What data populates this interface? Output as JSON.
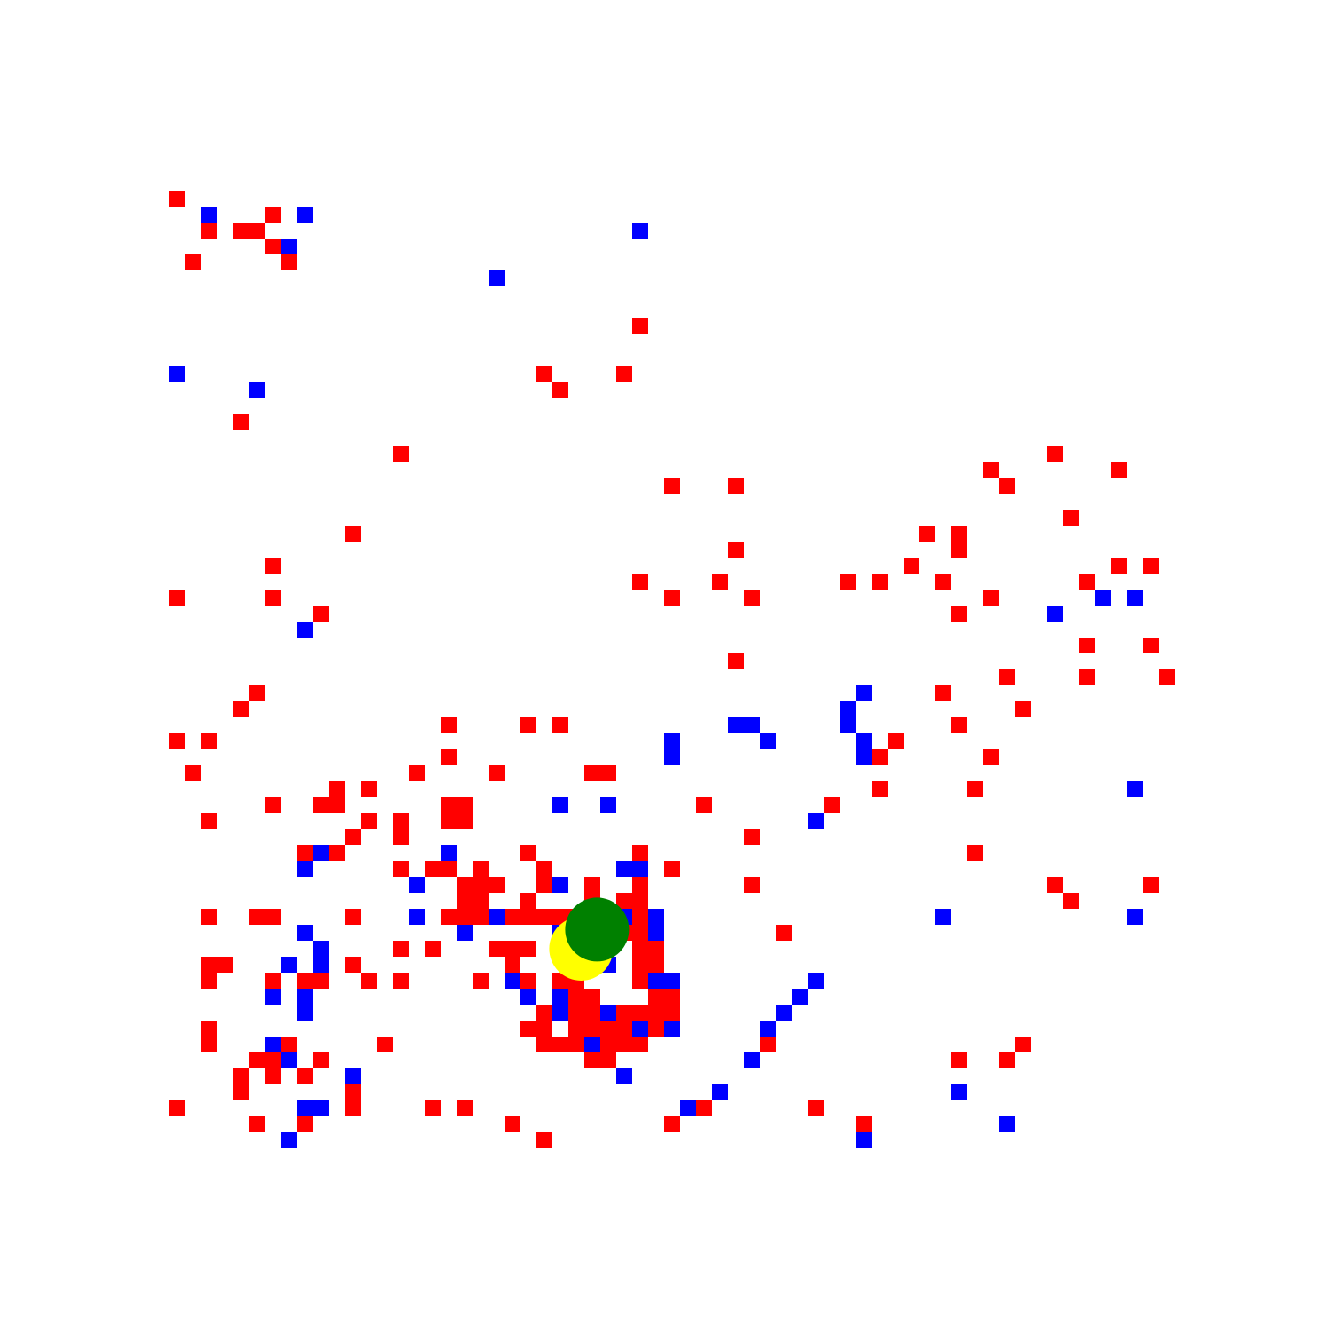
{
  "game": {
    "colors": {
      "background": "#ffffff",
      "red_cell": "#ff0000",
      "blue_cell": "#0000ff",
      "agent": "#008000",
      "target": "#ffff00"
    },
    "grid_cols": 65,
    "grid_rows": 65,
    "red_cells": [
      [
        0,
        0
      ],
      [
        6,
        1
      ],
      [
        2,
        2
      ],
      [
        4,
        2
      ],
      [
        5,
        2
      ],
      [
        6,
        3
      ],
      [
        1,
        4
      ],
      [
        7,
        4
      ],
      [
        29,
        8
      ],
      [
        23,
        11
      ],
      [
        28,
        11
      ],
      [
        24,
        12
      ],
      [
        4,
        14
      ],
      [
        14,
        16
      ],
      [
        55,
        16
      ],
      [
        51,
        17
      ],
      [
        59,
        17
      ],
      [
        31,
        18
      ],
      [
        35,
        18
      ],
      [
        52,
        18
      ],
      [
        56,
        20
      ],
      [
        11,
        21
      ],
      [
        47,
        21
      ],
      [
        49,
        21
      ],
      [
        49,
        22
      ],
      [
        35,
        22
      ],
      [
        6,
        23
      ],
      [
        46,
        23
      ],
      [
        59,
        23
      ],
      [
        61,
        23
      ],
      [
        29,
        24
      ],
      [
        34,
        24
      ],
      [
        42,
        24
      ],
      [
        44,
        24
      ],
      [
        48,
        24
      ],
      [
        57,
        24
      ],
      [
        0,
        25
      ],
      [
        6,
        25
      ],
      [
        31,
        25
      ],
      [
        36,
        25
      ],
      [
        51,
        25
      ],
      [
        9,
        26
      ],
      [
        49,
        26
      ],
      [
        57,
        28
      ],
      [
        61,
        28
      ],
      [
        35,
        29
      ],
      [
        52,
        30
      ],
      [
        57,
        30
      ],
      [
        62,
        30
      ],
      [
        5,
        31
      ],
      [
        48,
        31
      ],
      [
        4,
        32
      ],
      [
        53,
        32
      ],
      [
        17,
        33
      ],
      [
        22,
        33
      ],
      [
        24,
        33
      ],
      [
        49,
        33
      ],
      [
        0,
        34
      ],
      [
        2,
        34
      ],
      [
        45,
        34
      ],
      [
        17,
        35
      ],
      [
        44,
        35
      ],
      [
        51,
        35
      ],
      [
        1,
        36
      ],
      [
        15,
        36
      ],
      [
        20,
        36
      ],
      [
        26,
        36
      ],
      [
        27,
        36
      ],
      [
        10,
        37
      ],
      [
        12,
        37
      ],
      [
        44,
        37
      ],
      [
        50,
        37
      ],
      [
        6,
        38
      ],
      [
        9,
        38
      ],
      [
        10,
        38
      ],
      [
        17,
        38
      ],
      [
        18,
        38
      ],
      [
        33,
        38
      ],
      [
        41,
        38
      ],
      [
        2,
        39
      ],
      [
        12,
        39
      ],
      [
        14,
        39
      ],
      [
        17,
        39
      ],
      [
        18,
        39
      ],
      [
        11,
        40
      ],
      [
        14,
        40
      ],
      [
        36,
        40
      ],
      [
        8,
        41
      ],
      [
        10,
        41
      ],
      [
        22,
        41
      ],
      [
        29,
        41
      ],
      [
        50,
        41
      ],
      [
        14,
        42
      ],
      [
        16,
        42
      ],
      [
        17,
        42
      ],
      [
        19,
        42
      ],
      [
        23,
        42
      ],
      [
        31,
        42
      ],
      [
        18,
        43
      ],
      [
        19,
        43
      ],
      [
        20,
        43
      ],
      [
        23,
        43
      ],
      [
        26,
        43
      ],
      [
        29,
        43
      ],
      [
        36,
        43
      ],
      [
        55,
        43
      ],
      [
        61,
        43
      ],
      [
        18,
        44
      ],
      [
        19,
        44
      ],
      [
        22,
        44
      ],
      [
        26,
        44
      ],
      [
        28,
        44
      ],
      [
        29,
        44
      ],
      [
        56,
        44
      ],
      [
        2,
        45
      ],
      [
        5,
        45
      ],
      [
        6,
        45
      ],
      [
        11,
        45
      ],
      [
        17,
        45
      ],
      [
        18,
        45
      ],
      [
        19,
        45
      ],
      [
        21,
        45
      ],
      [
        22,
        45
      ],
      [
        23,
        45
      ],
      [
        24,
        45
      ],
      [
        25,
        45
      ],
      [
        26,
        45
      ],
      [
        27,
        45
      ],
      [
        29,
        45
      ],
      [
        28,
        46
      ],
      [
        29,
        46
      ],
      [
        30,
        46
      ],
      [
        38,
        46
      ],
      [
        14,
        47
      ],
      [
        16,
        47
      ],
      [
        20,
        47
      ],
      [
        21,
        47
      ],
      [
        22,
        47
      ],
      [
        29,
        47
      ],
      [
        30,
        47
      ],
      [
        2,
        48
      ],
      [
        3,
        48
      ],
      [
        11,
        48
      ],
      [
        21,
        48
      ],
      [
        29,
        48
      ],
      [
        30,
        48
      ],
      [
        2,
        49
      ],
      [
        6,
        49
      ],
      [
        8,
        49
      ],
      [
        9,
        49
      ],
      [
        12,
        49
      ],
      [
        14,
        49
      ],
      [
        19,
        49
      ],
      [
        22,
        49
      ],
      [
        24,
        49
      ],
      [
        25,
        49
      ],
      [
        29,
        49
      ],
      [
        30,
        49
      ],
      [
        24,
        50
      ],
      [
        25,
        50
      ],
      [
        26,
        50
      ],
      [
        30,
        50
      ],
      [
        31,
        50
      ],
      [
        23,
        51
      ],
      [
        25,
        51
      ],
      [
        26,
        51
      ],
      [
        27,
        51
      ],
      [
        28,
        51
      ],
      [
        29,
        51
      ],
      [
        30,
        51
      ],
      [
        31,
        51
      ],
      [
        2,
        52
      ],
      [
        22,
        52
      ],
      [
        23,
        52
      ],
      [
        25,
        52
      ],
      [
        26,
        52
      ],
      [
        27,
        52
      ],
      [
        28,
        52
      ],
      [
        30,
        52
      ],
      [
        2,
        53
      ],
      [
        7,
        53
      ],
      [
        13,
        53
      ],
      [
        23,
        53
      ],
      [
        24,
        53
      ],
      [
        25,
        53
      ],
      [
        27,
        53
      ],
      [
        28,
        53
      ],
      [
        29,
        53
      ],
      [
        37,
        53
      ],
      [
        53,
        53
      ],
      [
        5,
        54
      ],
      [
        6,
        54
      ],
      [
        9,
        54
      ],
      [
        26,
        54
      ],
      [
        27,
        54
      ],
      [
        49,
        54
      ],
      [
        52,
        54
      ],
      [
        4,
        55
      ],
      [
        6,
        55
      ],
      [
        8,
        55
      ],
      [
        4,
        56
      ],
      [
        11,
        56
      ],
      [
        0,
        57
      ],
      [
        11,
        57
      ],
      [
        16,
        57
      ],
      [
        18,
        57
      ],
      [
        33,
        57
      ],
      [
        40,
        57
      ],
      [
        5,
        58
      ],
      [
        8,
        58
      ],
      [
        21,
        58
      ],
      [
        31,
        58
      ],
      [
        43,
        58
      ],
      [
        23,
        59
      ]
    ],
    "blue_cells": [
      [
        2,
        1
      ],
      [
        8,
        1
      ],
      [
        29,
        2
      ],
      [
        7,
        3
      ],
      [
        20,
        5
      ],
      [
        0,
        11
      ],
      [
        5,
        12
      ],
      [
        58,
        25
      ],
      [
        60,
        25
      ],
      [
        55,
        26
      ],
      [
        8,
        27
      ],
      [
        43,
        31
      ],
      [
        42,
        32
      ],
      [
        35,
        33
      ],
      [
        36,
        33
      ],
      [
        42,
        33
      ],
      [
        31,
        34
      ],
      [
        37,
        34
      ],
      [
        43,
        34
      ],
      [
        31,
        35
      ],
      [
        43,
        35
      ],
      [
        60,
        37
      ],
      [
        24,
        38
      ],
      [
        27,
        38
      ],
      [
        40,
        39
      ],
      [
        9,
        41
      ],
      [
        17,
        41
      ],
      [
        8,
        42
      ],
      [
        28,
        42
      ],
      [
        29,
        42
      ],
      [
        15,
        43
      ],
      [
        24,
        43
      ],
      [
        15,
        45
      ],
      [
        20,
        45
      ],
      [
        28,
        45
      ],
      [
        30,
        45
      ],
      [
        48,
        45
      ],
      [
        60,
        45
      ],
      [
        8,
        46
      ],
      [
        18,
        46
      ],
      [
        24,
        46
      ],
      [
        30,
        46
      ],
      [
        9,
        47
      ],
      [
        7,
        48
      ],
      [
        9,
        48
      ],
      [
        27,
        48
      ],
      [
        21,
        49
      ],
      [
        30,
        49
      ],
      [
        31,
        49
      ],
      [
        40,
        49
      ],
      [
        6,
        50
      ],
      [
        8,
        50
      ],
      [
        22,
        50
      ],
      [
        24,
        50
      ],
      [
        39,
        50
      ],
      [
        8,
        51
      ],
      [
        24,
        51
      ],
      [
        27,
        51
      ],
      [
        38,
        51
      ],
      [
        29,
        52
      ],
      [
        31,
        52
      ],
      [
        37,
        52
      ],
      [
        6,
        53
      ],
      [
        26,
        53
      ],
      [
        7,
        54
      ],
      [
        36,
        54
      ],
      [
        11,
        55
      ],
      [
        28,
        55
      ],
      [
        34,
        56
      ],
      [
        49,
        56
      ],
      [
        8,
        57
      ],
      [
        9,
        57
      ],
      [
        32,
        57
      ],
      [
        52,
        58
      ],
      [
        7,
        59
      ],
      [
        43,
        59
      ]
    ],
    "agent": {
      "col": 26.3,
      "row": 45.8
    },
    "target": {
      "col": 25.3,
      "row": 47.0
    }
  }
}
